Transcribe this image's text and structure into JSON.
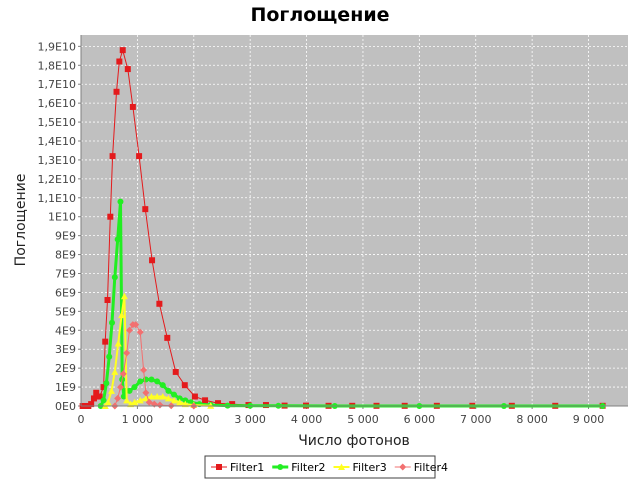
{
  "chart_data": {
    "type": "line",
    "title": "Поглощение",
    "xlabel": "Число фотонов",
    "ylabel": "Поглощение",
    "xlim": [
      0,
      9700
    ],
    "ylim": [
      0,
      19.6
    ],
    "y_unit_note": "1E9",
    "grid": true,
    "legend": "bottom",
    "x_ticks": [
      {
        "v": 0,
        "label": "0"
      },
      {
        "v": 1000,
        "label": "1 000"
      },
      {
        "v": 2000,
        "label": "2 000"
      },
      {
        "v": 3000,
        "label": "3 000"
      },
      {
        "v": 4000,
        "label": "4 000"
      },
      {
        "v": 5000,
        "label": "5 000"
      },
      {
        "v": 6000,
        "label": "6 000"
      },
      {
        "v": 7000,
        "label": "7 000"
      },
      {
        "v": 8000,
        "label": "8 000"
      },
      {
        "v": 9000,
        "label": "9 000"
      }
    ],
    "y_ticks": [
      {
        "v": 0,
        "label": "0E0"
      },
      {
        "v": 1,
        "label": "1E9"
      },
      {
        "v": 2,
        "label": "2E9"
      },
      {
        "v": 3,
        "label": "3E9"
      },
      {
        "v": 4,
        "label": "4E9"
      },
      {
        "v": 5,
        "label": "5E9"
      },
      {
        "v": 6,
        "label": "6E9"
      },
      {
        "v": 7,
        "label": "7E9"
      },
      {
        "v": 8,
        "label": "8E9"
      },
      {
        "v": 9,
        "label": "9E9"
      },
      {
        "v": 10,
        "label": "1E10"
      },
      {
        "v": 11,
        "label": "1,1E10"
      },
      {
        "v": 12,
        "label": "1,2E10"
      },
      {
        "v": 13,
        "label": "1,3E10"
      },
      {
        "v": 14,
        "label": "1,4E10"
      },
      {
        "v": 15,
        "label": "1,5E10"
      },
      {
        "v": 16,
        "label": "1,6E10"
      },
      {
        "v": 17,
        "label": "1,7E10"
      },
      {
        "v": 18,
        "label": "1,8E10"
      },
      {
        "v": 19,
        "label": "1,9E10"
      }
    ],
    "series": [
      {
        "name": "Filter1",
        "color": "#e41a1c",
        "marker": "square",
        "width": 1,
        "points": [
          [
            30,
            0
          ],
          [
            80,
            0
          ],
          [
            130,
            0
          ],
          [
            180,
            0.1
          ],
          [
            230,
            0.4
          ],
          [
            270,
            0.7
          ],
          [
            330,
            0.5
          ],
          [
            400,
            1.0
          ],
          [
            430,
            3.4
          ],
          [
            470,
            5.6
          ],
          [
            520,
            10.0
          ],
          [
            560,
            13.2
          ],
          [
            630,
            16.6
          ],
          [
            680,
            18.2
          ],
          [
            740,
            18.8
          ],
          [
            830,
            17.8
          ],
          [
            920,
            15.8
          ],
          [
            1030,
            13.2
          ],
          [
            1140,
            10.4
          ],
          [
            1260,
            7.7
          ],
          [
            1390,
            5.4
          ],
          [
            1530,
            3.6
          ],
          [
            1680,
            1.8
          ],
          [
            1840,
            1.1
          ],
          [
            2020,
            0.5
          ],
          [
            2200,
            0.3
          ],
          [
            2430,
            0.15
          ],
          [
            2680,
            0.1
          ],
          [
            2970,
            0.05
          ],
          [
            3280,
            0.05
          ],
          [
            3610,
            0.02
          ],
          [
            3990,
            0.02
          ],
          [
            4390,
            0.01
          ],
          [
            4810,
            0.01
          ],
          [
            5240,
            0.01
          ],
          [
            5740,
            0.01
          ],
          [
            6310,
            0.01
          ],
          [
            6940,
            0.01
          ],
          [
            7640,
            0.01
          ],
          [
            8410,
            0.01
          ],
          [
            9250,
            0.01
          ]
        ]
      },
      {
        "name": "Filter2",
        "color": "#22ee22",
        "marker": "circle",
        "width": 3,
        "points": [
          [
            350,
            0
          ],
          [
            400,
            0.3
          ],
          [
            450,
            1.2
          ],
          [
            500,
            2.6
          ],
          [
            550,
            4.4
          ],
          [
            600,
            6.8
          ],
          [
            650,
            8.8
          ],
          [
            700,
            10.8
          ],
          [
            730,
            1.4
          ],
          [
            760,
            0.5
          ],
          [
            800,
            0.8
          ],
          [
            860,
            0.8
          ],
          [
            950,
            1.0
          ],
          [
            1050,
            1.3
          ],
          [
            1150,
            1.4
          ],
          [
            1250,
            1.4
          ],
          [
            1350,
            1.3
          ],
          [
            1450,
            1.1
          ],
          [
            1550,
            0.8
          ],
          [
            1650,
            0.6
          ],
          [
            1750,
            0.4
          ],
          [
            1850,
            0.3
          ],
          [
            1950,
            0.2
          ],
          [
            2100,
            0.1
          ],
          [
            2300,
            0.05
          ],
          [
            2600,
            0.02
          ],
          [
            3000,
            0.01
          ],
          [
            3500,
            0.01
          ],
          [
            4500,
            0
          ],
          [
            6000,
            0
          ],
          [
            7500,
            0
          ],
          [
            9250,
            0
          ]
        ]
      },
      {
        "name": "Filter3",
        "color": "#ffff22",
        "marker": "triangle",
        "width": 2,
        "points": [
          [
            430,
            0
          ],
          [
            480,
            0.2
          ],
          [
            540,
            0.8
          ],
          [
            600,
            1.8
          ],
          [
            660,
            3.3
          ],
          [
            720,
            4.8
          ],
          [
            770,
            5.8
          ],
          [
            810,
            0.3
          ],
          [
            880,
            0.1
          ],
          [
            950,
            0.2
          ],
          [
            1050,
            0.3
          ],
          [
            1150,
            0.4
          ],
          [
            1250,
            0.5
          ],
          [
            1350,
            0.5
          ],
          [
            1450,
            0.5
          ],
          [
            1550,
            0.4
          ],
          [
            1650,
            0.3
          ],
          [
            1750,
            0.2
          ],
          [
            1850,
            0.1
          ],
          [
            2000,
            0.05
          ],
          [
            2300,
            0.01
          ]
        ]
      },
      {
        "name": "Filter4",
        "color": "#f27070",
        "marker": "diamond",
        "width": 1,
        "points": [
          [
            600,
            0
          ],
          [
            650,
            0.4
          ],
          [
            700,
            1.0
          ],
          [
            750,
            1.7
          ],
          [
            810,
            2.8
          ],
          [
            860,
            4.0
          ],
          [
            920,
            4.3
          ],
          [
            970,
            4.3
          ],
          [
            1050,
            3.9
          ],
          [
            1110,
            1.9
          ],
          [
            1150,
            0.7
          ],
          [
            1210,
            0.2
          ],
          [
            1300,
            0.1
          ],
          [
            1400,
            0.05
          ],
          [
            1600,
            0.01
          ],
          [
            2000,
            0
          ]
        ]
      }
    ]
  }
}
